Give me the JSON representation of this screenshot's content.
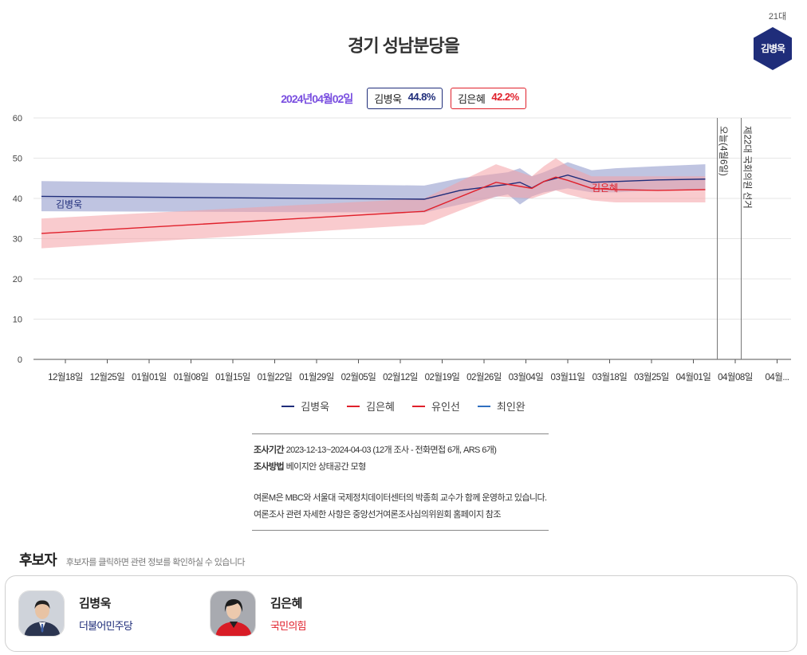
{
  "header": {
    "title": "경기 성남분당을",
    "term": "21대",
    "winner_name": "김병욱",
    "winner_color": "#1f2d7a"
  },
  "summary": {
    "date": "2024년04월02일",
    "candidates": [
      {
        "name": "김병욱",
        "pct": "44.8%",
        "color": "#1f2d7a"
      },
      {
        "name": "김은혜",
        "pct": "42.2%",
        "color": "#e0202b"
      }
    ]
  },
  "chart_data": {
    "type": "line",
    "x_ticks": [
      "12월18일",
      "12월25일",
      "01월01일",
      "01월08일",
      "01월15일",
      "01월22일",
      "01월29일",
      "02월05일",
      "02월12일",
      "02월19일",
      "02월26일",
      "03월04일",
      "03월11일",
      "03월18일",
      "03월25일",
      "04월01일",
      "04월08일",
      "04월..."
    ],
    "ylim": [
      0,
      60
    ],
    "y_ticks": [
      0,
      10,
      20,
      30,
      40,
      50,
      60
    ],
    "grid": true,
    "legend_position": "bottom",
    "reference_lines": [
      {
        "label": "오늘(4월6일)",
        "day": 113
      },
      {
        "label": "제22대 국회의원 선거",
        "day": 117
      }
    ],
    "series": [
      {
        "name": "김병욱",
        "color": "#1f2d7a",
        "band_color": "#8a93c8",
        "line_label": "김병욱",
        "days": [
          0,
          64,
          70,
          78,
          80,
          82,
          84,
          88,
          92,
          96,
          103,
          111
        ],
        "values": [
          40.5,
          39.8,
          42.0,
          43.5,
          44.0,
          42.6,
          44.2,
          45.8,
          44.0,
          44.2,
          44.6,
          44.8
        ],
        "lower": [
          36.8,
          36.5,
          38.5,
          41.0,
          38.5,
          40.5,
          41.5,
          42.5,
          41.5,
          41.5,
          42.0,
          42.0
        ],
        "upper": [
          44.3,
          43.2,
          45.0,
          46.5,
          47.5,
          45.5,
          46.5,
          49.0,
          47.0,
          47.5,
          48.0,
          48.5
        ]
      },
      {
        "name": "김은혜",
        "color": "#e0202b",
        "band_color": "#f4a1a6",
        "line_label": "김은혜",
        "days": [
          0,
          64,
          76,
          82,
          84,
          86,
          88,
          92,
          96,
          103,
          111
        ],
        "values": [
          31.3,
          36.8,
          44.0,
          42.5,
          44.2,
          45.3,
          44.5,
          42.5,
          42.2,
          42.0,
          42.2
        ],
        "lower": [
          27.6,
          33.5,
          40.5,
          40.0,
          41.0,
          42.0,
          41.0,
          39.5,
          39.0,
          39.0,
          39.0
        ],
        "upper": [
          35.0,
          40.0,
          48.5,
          45.5,
          48.0,
          50.0,
          48.0,
          45.5,
          45.5,
          45.5,
          45.5
        ]
      }
    ],
    "legend": [
      {
        "name": "김병욱",
        "color": "#1f2d7a"
      },
      {
        "name": "김은혜",
        "color": "#e0202b"
      },
      {
        "name": "유인선",
        "color": "#e0202b"
      },
      {
        "name": "최인완",
        "color": "#2f6fc0"
      }
    ]
  },
  "info": {
    "period_label": "조사기간",
    "period_value": "2023-12-13~2024-04-03 (12개 조사 - 전화면접 6개, ARS 6개)",
    "method_label": "조사방법",
    "method_value": "베이지안 상태공간 모형",
    "note1": "여론M은 MBC와 서울대 국제정치데이터센터의 박종희 교수가 함께 운영하고 있습니다.",
    "note2": "여론조사 관련 자세한 사항은 중앙선거여론조사심의위원회 홈페이지 참조"
  },
  "candidates_section": {
    "heading": "후보자",
    "hint": "후보자를 클릭하면 관련 정보를 확인하실 수 있습니다",
    "list": [
      {
        "name": "김병욱",
        "party": "더불어민주당",
        "party_color": "#1f2d7a",
        "photo_bg": "#cfd3da",
        "suit_color": "#2b3550"
      },
      {
        "name": "김은혜",
        "party": "국민의힘",
        "party_color": "#e0202b",
        "photo_bg": "#a8aab0",
        "suit_color": "#d81c26"
      }
    ]
  }
}
